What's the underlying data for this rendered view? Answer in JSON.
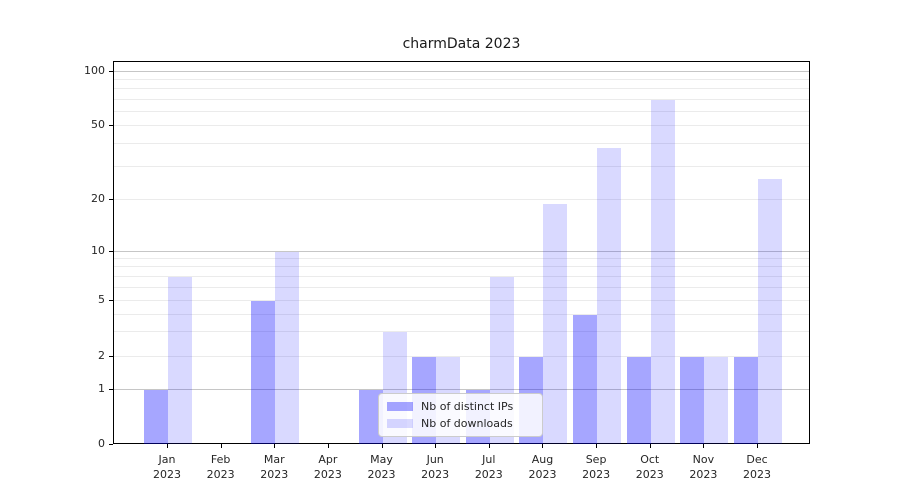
{
  "title": "charmData 2023",
  "legend": {
    "items": [
      {
        "label": "Nb of distinct IPs",
        "color": "rgba(0,0,255,0.35)"
      },
      {
        "label": "Nb of downloads",
        "color": "rgba(0,0,255,0.15)"
      }
    ]
  },
  "chart_data": {
    "type": "bar",
    "title": "charmData 2023",
    "categories": [
      "Jan 2023",
      "Feb 2023",
      "Mar 2023",
      "Apr 2023",
      "May 2023",
      "Jun 2023",
      "Jul 2023",
      "Aug 2023",
      "Sep 2023",
      "Oct 2023",
      "Nov 2023",
      "Dec 2023"
    ],
    "series": [
      {
        "name": "Nb of distinct IPs",
        "color": "rgba(0,0,255,0.35)",
        "values": [
          1,
          0,
          5,
          0,
          1,
          2,
          1,
          2,
          4,
          2,
          2,
          2
        ]
      },
      {
        "name": "Nb of downloads",
        "color": "rgba(0,0,255,0.15)",
        "values": [
          7,
          0,
          10,
          0,
          3,
          2,
          7,
          19,
          38,
          70,
          2,
          26
        ]
      }
    ],
    "ylabel": "",
    "xlabel": "",
    "yscale": "symlog",
    "ylim": [
      0,
      110
    ],
    "yticks": [
      0,
      1,
      2,
      5,
      10,
      20,
      50,
      100
    ],
    "minor_gridlines": [
      2,
      3,
      4,
      5,
      6,
      7,
      8,
      9,
      20,
      30,
      40,
      50,
      60,
      70,
      80,
      90
    ],
    "major_gridlines": [
      1,
      10,
      100
    ],
    "grid": "on",
    "legend_position": "lower center"
  }
}
